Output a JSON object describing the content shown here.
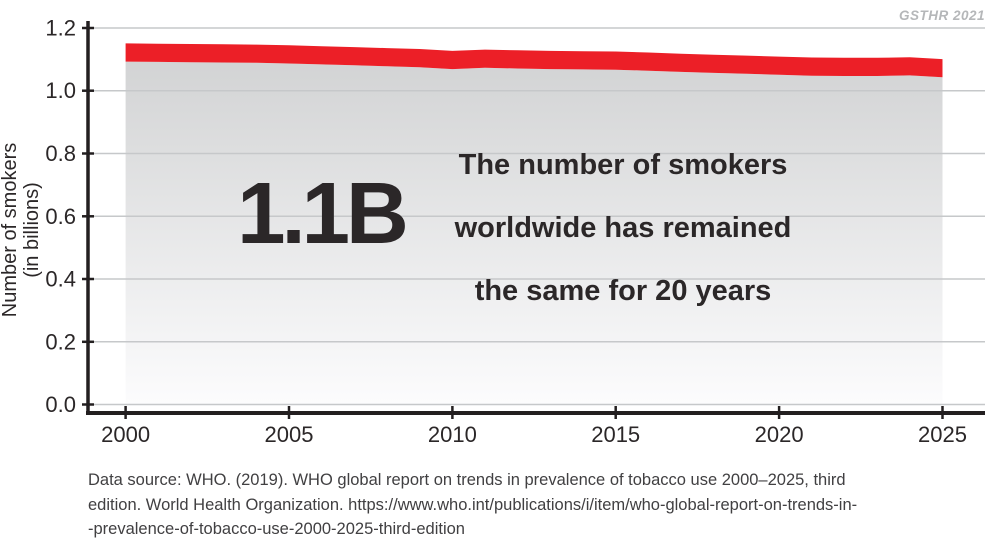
{
  "watermark": "GSTHR 2021",
  "badge": {
    "value": "1.1B"
  },
  "annotation": {
    "line1": "The number of smokers",
    "line2": "worldwide has remained",
    "line3": "the same for 20 years"
  },
  "source": {
    "lines": [
      "Data source: WHO. (2019). WHO global report on trends in prevalence of tobacco use 2000–2025, third",
      "edition. World Health Organization. https://www.who.int/publications/i/item/who-global-report-on-trends-in-",
      "-prevalence-of-tobacco-use-2000-2025-third-edition"
    ]
  },
  "colors": {
    "line_red": "#ec1f27",
    "area_top": "#d2d3d4",
    "area_bottom": "#fcfcfd",
    "gridline": "#c6c8ca",
    "axis": "#231f20",
    "text": "#2b2728",
    "watermark": "#b5b7b9",
    "source_text": "#414042"
  },
  "chart_data": {
    "type": "area",
    "title": "",
    "xlabel": "",
    "ylabel_line1": "Number of smokers",
    "ylabel_line2": "(in billions)",
    "x": [
      2000,
      2001,
      2002,
      2003,
      2004,
      2005,
      2006,
      2007,
      2008,
      2009,
      2010,
      2011,
      2012,
      2013,
      2014,
      2015,
      2016,
      2017,
      2018,
      2019,
      2020,
      2021,
      2022,
      2023,
      2024,
      2025
    ],
    "series": [
      {
        "name": "Number of smokers worldwide (billions)",
        "values": [
          1.122,
          1.121,
          1.12,
          1.119,
          1.118,
          1.116,
          1.113,
          1.11,
          1.107,
          1.104,
          1.098,
          1.102,
          1.1,
          1.098,
          1.097,
          1.096,
          1.093,
          1.089,
          1.086,
          1.083,
          1.08,
          1.077,
          1.076,
          1.076,
          1.078,
          1.072
        ]
      }
    ],
    "band_half_width": 0.029,
    "ylim": [
      0.0,
      1.2
    ],
    "xlim": [
      1998.85,
      2026.3
    ],
    "yticks": [
      0.0,
      0.2,
      0.4,
      0.6,
      0.8,
      1.0,
      1.2
    ],
    "ytick_labels": [
      "0.0",
      "0.2",
      "0.4",
      "0.6",
      "0.8",
      "1.0",
      "1.2"
    ],
    "xticks": [
      2000,
      2005,
      2010,
      2015,
      2020,
      2025
    ],
    "xtick_labels": [
      "2000",
      "2005",
      "2010",
      "2015",
      "2020",
      "2025"
    ],
    "grid": true,
    "legend": "none",
    "annotation_value": "1.1B",
    "annotation_text": "The number of smokers worldwide has remained the same for 20 years"
  }
}
